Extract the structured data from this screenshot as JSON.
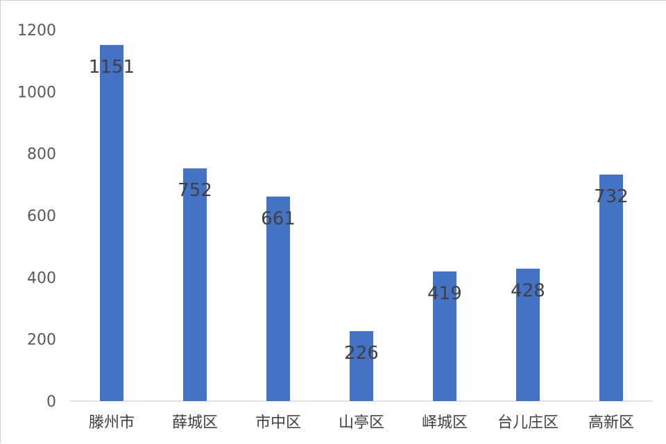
{
  "chart_data": {
    "type": "bar",
    "title": "",
    "xlabel": "",
    "ylabel": "",
    "categories": [
      "滕州市",
      "薛城区",
      "市中区",
      "山亭区",
      "峄城区",
      "台儿庄区",
      "高新区"
    ],
    "values": [
      1151,
      752,
      661,
      226,
      419,
      428,
      732
    ],
    "value_labels": [
      "1151",
      "752",
      "661",
      "226",
      "419",
      "428",
      "732"
    ],
    "ylim": [
      0,
      1200
    ],
    "yticks": [
      0,
      200,
      400,
      600,
      800,
      1000,
      1200
    ],
    "ytick_labels": [
      "0",
      "200",
      "400",
      "600",
      "800",
      "1000",
      "1200"
    ],
    "grid": false,
    "legend": "none",
    "bar_color": "#4472C4",
    "axis_color": "#D9D9D9"
  }
}
